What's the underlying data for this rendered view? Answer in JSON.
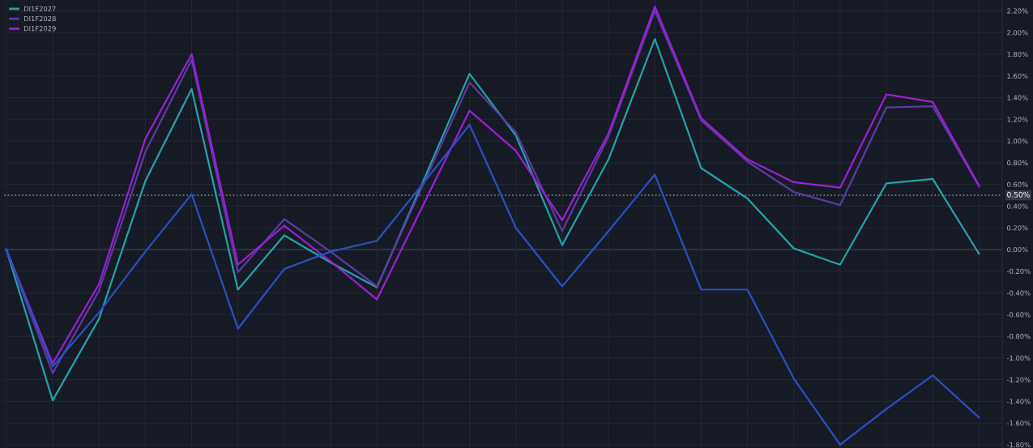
{
  "chart_data": {
    "type": "line",
    "categories": [
      null,
      null,
      null,
      null,
      null,
      null,
      null,
      null,
      null,
      null,
      null,
      null,
      null,
      null,
      null,
      null,
      null,
      null,
      null,
      null,
      null,
      null
    ],
    "series": [
      {
        "name": "DI1F2027",
        "color": "#22a3a8",
        "values": [
          0,
          -1.39,
          -0.64,
          0.63,
          1.48,
          -0.37,
          0.13,
          -0.12,
          -0.35,
          0.63,
          1.62,
          1.05,
          0.04,
          0.83,
          1.94,
          0.75,
          0.47,
          0.01,
          -0.14,
          0.61,
          0.65,
          -0.04
        ]
      },
      {
        "name": "DI1F2028",
        "color": "#5b3aa0",
        "values": [
          0,
          -1.14,
          -0.38,
          0.9,
          1.75,
          -0.21,
          0.28,
          -0.02,
          -0.34,
          0.6,
          1.54,
          1.08,
          0.17,
          1.04,
          2.2,
          1.19,
          0.81,
          0.53,
          0.41,
          1.31,
          1.32,
          0.58
        ]
      },
      {
        "name": "DI1F2029",
        "color": "#9b1fd6",
        "values": [
          0,
          -1.05,
          -0.32,
          1.02,
          1.8,
          -0.14,
          0.22,
          -0.11,
          -0.46,
          0.41,
          1.28,
          0.91,
          0.27,
          1.07,
          2.24,
          1.21,
          0.83,
          0.62,
          0.57,
          1.43,
          1.36,
          0.59
        ]
      },
      {
        "color": "#2b4fc0",
        "values": [
          0,
          -1.08,
          -0.58,
          -0.02,
          0.51,
          -0.73,
          -0.18,
          -0.02,
          0.08,
          0.61,
          1.15,
          0.2,
          -0.34,
          0.17,
          0.69,
          -0.37,
          -0.37,
          -1.19,
          -1.8,
          -1.47,
          -1.16,
          -1.55
        ]
      }
    ],
    "ylim": [
      -1.83,
      2.3
    ],
    "yticks": [
      {
        "value": -1.8,
        "label": "-1.80%"
      },
      {
        "value": -1.6,
        "label": "-1.60%"
      },
      {
        "value": -1.4,
        "label": "-1.40%"
      },
      {
        "value": -1.2,
        "label": "-1.20%"
      },
      {
        "value": -1.0,
        "label": "-1.00%"
      },
      {
        "value": -0.8,
        "label": "-0.80%"
      },
      {
        "value": -0.6,
        "label": "-0.60%"
      },
      {
        "value": -0.4,
        "label": "-0.40%"
      },
      {
        "value": -0.2,
        "label": "-0.20%"
      },
      {
        "value": 0,
        "label": "0.00%"
      },
      {
        "value": 0.2,
        "label": "0.20%"
      },
      {
        "value": 0.4,
        "label": "0.40%"
      },
      {
        "value": 0.6,
        "label": "0.60%"
      },
      {
        "value": 0.8,
        "label": "0.80%"
      },
      {
        "value": 1.0,
        "label": "1.00%"
      },
      {
        "value": 1.2,
        "label": "1.20%"
      },
      {
        "value": 1.4,
        "label": "1.40%"
      },
      {
        "value": 1.6,
        "label": "1.60%"
      },
      {
        "value": 1.8,
        "label": "1.80%"
      },
      {
        "value": 2.0,
        "label": "2.00%"
      },
      {
        "value": 2.2,
        "label": "2.20%"
      }
    ],
    "ref_lines": [
      {
        "axis": "y",
        "value": 0,
        "color": "#4a4e5a",
        "line_style": "solid"
      },
      {
        "axis": "y",
        "value": 0.5,
        "label": "0.50%",
        "color": "#8a8e99",
        "line_style": "dotted"
      }
    ],
    "grid": true,
    "legend": "top left",
    "marker": "none",
    "line_style": "solid",
    "tick_labels": "y"
  }
}
